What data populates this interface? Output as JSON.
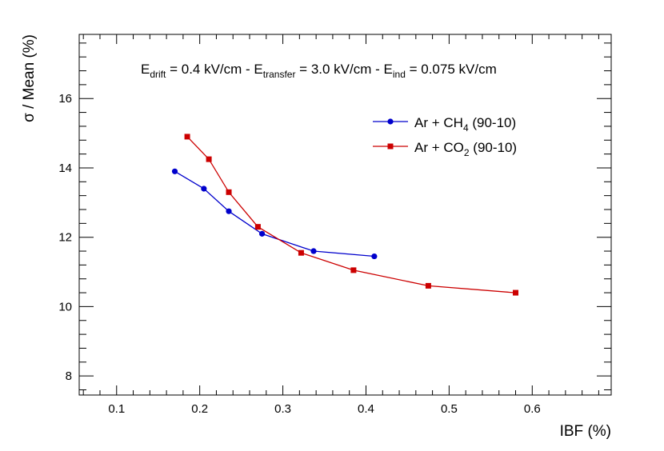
{
  "chart_data": {
    "type": "line",
    "title_annotation": {
      "parts": [
        {
          "text": "E",
          "sub": "drift",
          "rest": " = 0.4 kV/cm - "
        },
        {
          "text": "E",
          "sub": "transfer",
          "rest": " = 3.0 kV/cm - "
        },
        {
          "text": "E",
          "sub": "ind",
          "rest": " = 0.075 kV/cm"
        }
      ]
    },
    "xlabel": "IBF (%)",
    "ylabel": "σ / Mean (%)",
    "xlim": [
      0.055,
      0.695
    ],
    "ylim": [
      7.45,
      17.85
    ],
    "x_ticks": [
      {
        "value": 0.1,
        "label": "0.1"
      },
      {
        "value": 0.2,
        "label": "0.2"
      },
      {
        "value": 0.3,
        "label": "0.3"
      },
      {
        "value": 0.4,
        "label": "0.4"
      },
      {
        "value": 0.5,
        "label": "0.5"
      },
      {
        "value": 0.6,
        "label": "0.6"
      }
    ],
    "y_ticks": [
      {
        "value": 8,
        "label": "8"
      },
      {
        "value": 10,
        "label": "10"
      },
      {
        "value": 12,
        "label": "12"
      },
      {
        "value": 14,
        "label": "14"
      },
      {
        "value": 16,
        "label": "16"
      }
    ],
    "grid": false,
    "legend_position": "top-right",
    "series": [
      {
        "name": "Ar + CH4 (90-10)",
        "legend_label": {
          "main": "Ar + CH",
          "sub": "4",
          "tail": " (90-10)"
        },
        "marker": "circle",
        "color": "#0000cc",
        "x": [
          0.17,
          0.205,
          0.235,
          0.275,
          0.337,
          0.41
        ],
        "y": [
          13.9,
          13.4,
          12.75,
          12.1,
          11.6,
          11.45
        ]
      },
      {
        "name": "Ar + CO2 (90-10)",
        "legend_label": {
          "main": "Ar + CO",
          "sub": "2",
          "tail": " (90-10)"
        },
        "marker": "square",
        "color": "#cc0000",
        "x": [
          0.185,
          0.211,
          0.235,
          0.27,
          0.322,
          0.385,
          0.475,
          0.58
        ],
        "y": [
          14.9,
          14.25,
          13.3,
          12.3,
          11.55,
          11.05,
          10.6,
          10.4
        ]
      }
    ]
  }
}
